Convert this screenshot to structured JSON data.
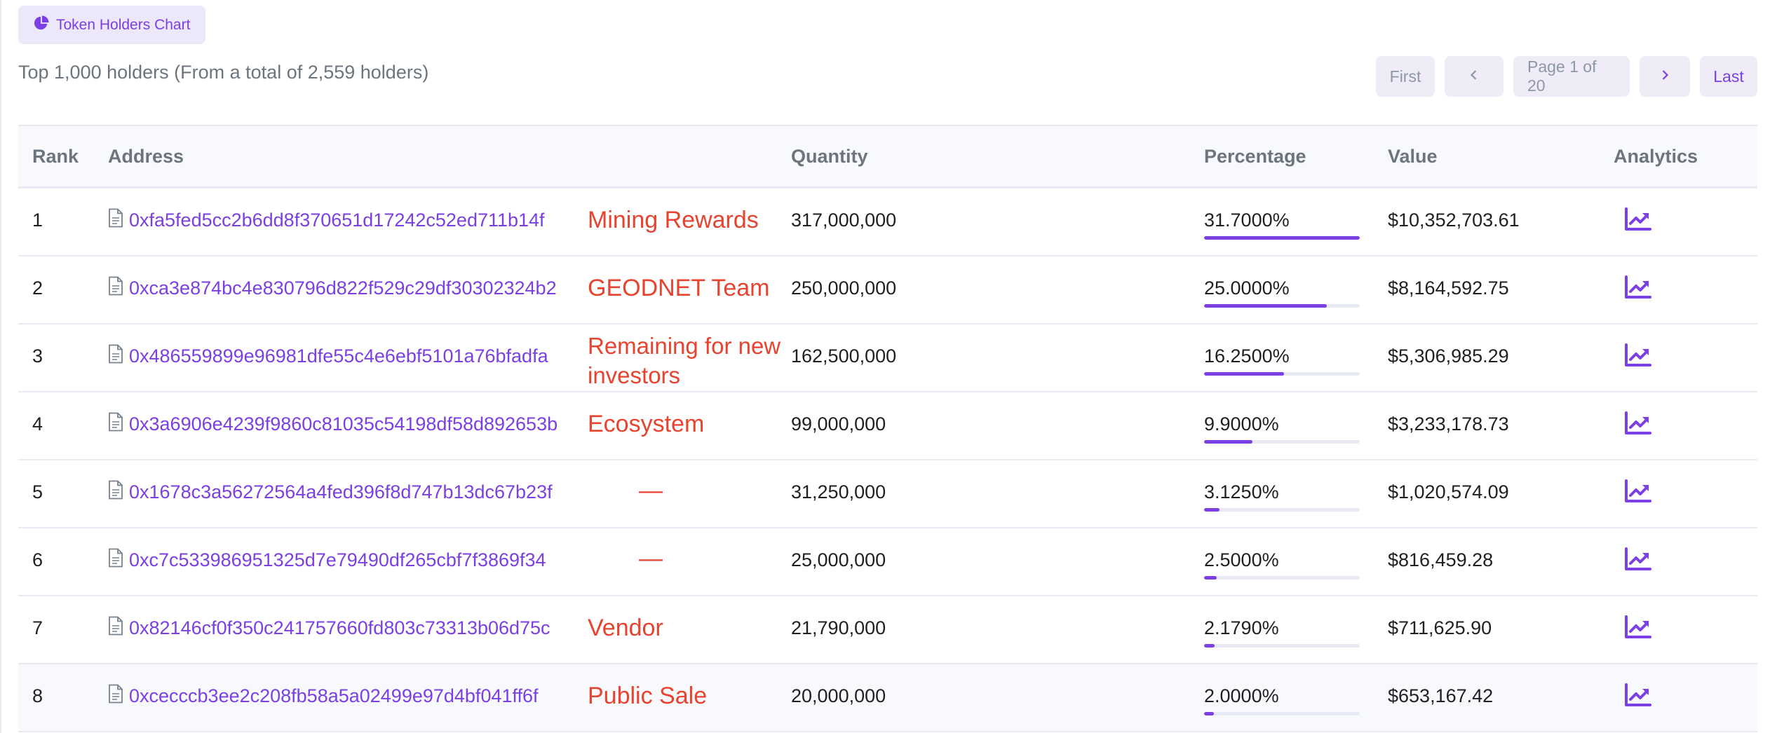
{
  "chart_button": {
    "label": "Token Holders Chart",
    "icon": "pie-chart-icon"
  },
  "summary": "Top 1,000 holders (From a total of 2,559 holders)",
  "pagination": {
    "first": "First",
    "page": "Page 1 of 20",
    "last": "Last"
  },
  "columns": {
    "rank": "Rank",
    "address": "Address",
    "quantity": "Quantity",
    "percentage": "Percentage",
    "value": "Value",
    "analytics": "Analytics"
  },
  "rows": [
    {
      "rank": "1",
      "address": "0xfa5fed5cc2b6dd8f370651d17242c52ed711b14f",
      "tag": "Mining Rewards",
      "quantity": "317,000,000",
      "percentage": "31.7000%",
      "pct": 31.7,
      "value": "$10,352,703.61"
    },
    {
      "rank": "2",
      "address": "0xca3e874bc4e830796d822f529c29df30302324b2",
      "tag": "GEODNET Team",
      "quantity": "250,000,000",
      "percentage": "25.0000%",
      "pct": 25.0,
      "value": "$8,164,592.75"
    },
    {
      "rank": "3",
      "address": "0x486559899e96981dfe55c4e6ebf5101a76bfadfa",
      "tag": "Remaining for new investors",
      "quantity": "162,500,000",
      "percentage": "16.2500%",
      "pct": 16.25,
      "value": "$5,306,985.29"
    },
    {
      "rank": "4",
      "address": "0x3a6906e4239f9860c81035c54198df58d892653b",
      "tag": "Ecosystem",
      "quantity": "99,000,000",
      "percentage": "9.9000%",
      "pct": 9.9,
      "value": "$3,233,178.73"
    },
    {
      "rank": "5",
      "address": "0x1678c3a56272564a4fed396f8d747b13dc67b23f",
      "tag": "—",
      "quantity": "31,250,000",
      "percentage": "3.1250%",
      "pct": 3.125,
      "value": "$1,020,574.09"
    },
    {
      "rank": "6",
      "address": "0xc7c533986951325d7e79490df265cbf7f3869f34",
      "tag": "—",
      "quantity": "25,000,000",
      "percentage": "2.5000%",
      "pct": 2.5,
      "value": "$816,459.28"
    },
    {
      "rank": "7",
      "address": "0x82146cf0f350c241757660fd803c73313b06d75c",
      "tag": "Vendor",
      "quantity": "21,790,000",
      "percentage": "2.1790%",
      "pct": 2.179,
      "value": "$711,625.90"
    },
    {
      "rank": "8",
      "address": "0xcecccb3ee2c208fb58a5a02499e97d4bf041ff6f",
      "tag": "Public Sale",
      "quantity": "20,000,000",
      "percentage": "2.0000%",
      "pct": 2.0,
      "value": "$653,167.42"
    }
  ],
  "colors": {
    "accent": "#7b3fe4",
    "annotation": "#e8432f",
    "muted": "#6c757e"
  }
}
